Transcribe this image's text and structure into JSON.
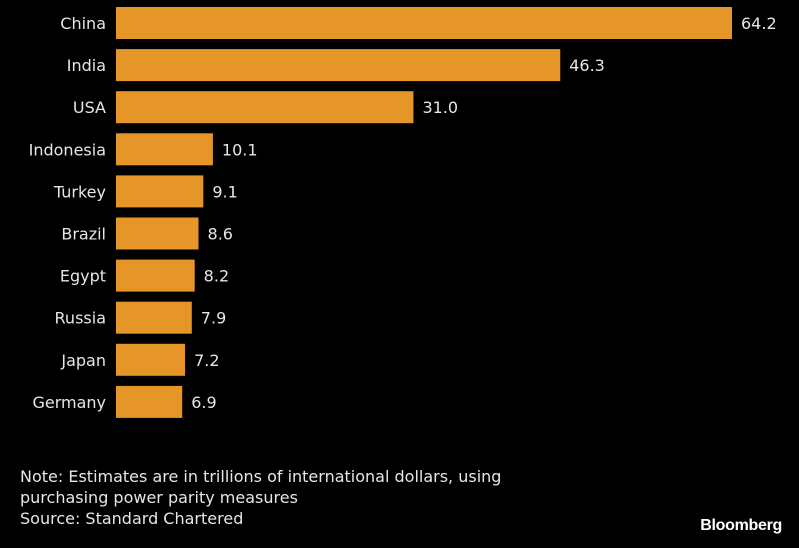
{
  "chart_data": {
    "type": "bar",
    "orientation": "horizontal",
    "categories": [
      "China",
      "India",
      "USA",
      "Indonesia",
      "Turkey",
      "Brazil",
      "Egypt",
      "Russia",
      "Japan",
      "Germany"
    ],
    "values": [
      64.2,
      46.3,
      31.0,
      10.1,
      9.1,
      8.6,
      8.2,
      7.9,
      7.2,
      6.9
    ],
    "value_labels": [
      "64.2",
      "46.3",
      "31.0",
      "10.1",
      "9.1",
      "8.6",
      "8.2",
      "7.9",
      "7.2",
      "6.9"
    ],
    "title": "",
    "xlabel": "",
    "ylabel": "",
    "xlim": [
      0,
      64.2
    ],
    "grid": false,
    "bar_color": "#e69528"
  },
  "footer": {
    "note_line1": "Note: Estimates are in trillions of international dollars, using",
    "note_line2": "purchasing power parity measures",
    "source": "Source: Standard Chartered",
    "brand": "Bloomberg"
  }
}
